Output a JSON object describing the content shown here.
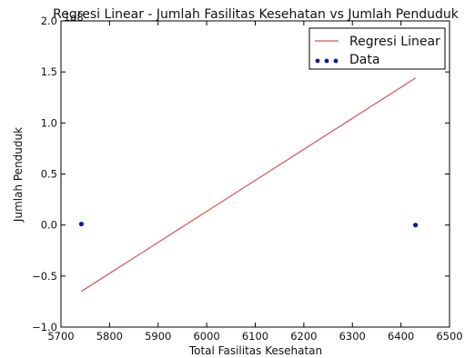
{
  "chart_data": {
    "type": "scatter",
    "title": "Regresi Linear - Jumlah Fasilitas Kesehatan vs Jumlah Penduduk",
    "xlabel": "Total Fasilitas Kesehatan",
    "ylabel": "Jumlah Penduduk",
    "y_multiplier_label": "1e8",
    "xlim": [
      5700,
      6500
    ],
    "ylim": [
      -1.0,
      2.0
    ],
    "xticks": [
      5700,
      5800,
      5900,
      6000,
      6100,
      6200,
      6300,
      6400,
      6500
    ],
    "yticks": [
      -1.0,
      -0.5,
      0.0,
      0.5,
      1.0,
      1.5,
      2.0
    ],
    "xtick_labels": [
      "5700",
      "5800",
      "5900",
      "6000",
      "6100",
      "6200",
      "6300",
      "6400",
      "6500"
    ],
    "ytick_labels": [
      "−1.0",
      "−0.5",
      "0.0",
      "0.5",
      "1.0",
      "1.5",
      "2.0"
    ],
    "grid": false,
    "legend_position": "top-right",
    "series": [
      {
        "name": "Regresi Linear",
        "kind": "line",
        "color": "#d9534f",
        "x": [
          5742,
          6430
        ],
        "y": [
          -0.65,
          1.44
        ]
      },
      {
        "name": "Data",
        "kind": "scatter",
        "color": "#0a1aa8",
        "x": [
          5742,
          6430
        ],
        "y": [
          0.01,
          0.0
        ]
      }
    ]
  }
}
